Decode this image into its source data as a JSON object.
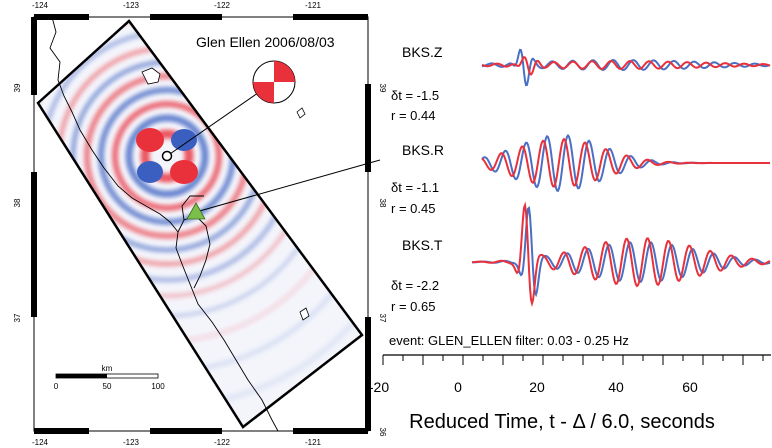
{
  "map": {
    "top_lon_ticks": [
      "-124",
      "-123",
      "-122",
      "-121"
    ],
    "bottom_lon_ticks": [
      "-124",
      "-123",
      "-122",
      "-121"
    ],
    "left_lat_ticks": [
      "39",
      "38",
      "37"
    ],
    "right_lat_ticks": [
      "39",
      "38",
      "37",
      "36"
    ],
    "title": "Glen Ellen 2006/08/03",
    "scale_unit": "km",
    "scale_ticks": [
      "0",
      "50",
      "100"
    ],
    "colors": {
      "positive": "#e8313b",
      "negative": "#3b5fc0",
      "station": "#7bbf4a"
    }
  },
  "traces": [
    {
      "name": "BKS.Z",
      "dt": "δt = -1.5",
      "r": "r = 0.44"
    },
    {
      "name": "BKS.R",
      "dt": "δt = -1.1",
      "r": "r = 0.45"
    },
    {
      "name": "BKS.T",
      "dt": "δt = -2.2",
      "r": "r = 0.65"
    }
  ],
  "event_label": "event: GLEN_ELLEN filter: 0.03 - 0.25 Hz",
  "axis": {
    "title": "Reduced Time, t - Δ / 6.0, seconds",
    "ticks": [
      "-20",
      "0",
      "20",
      "40",
      "60"
    ]
  },
  "colors": {
    "data": "#e8313b",
    "synthetic": "#4a6fc4"
  }
}
